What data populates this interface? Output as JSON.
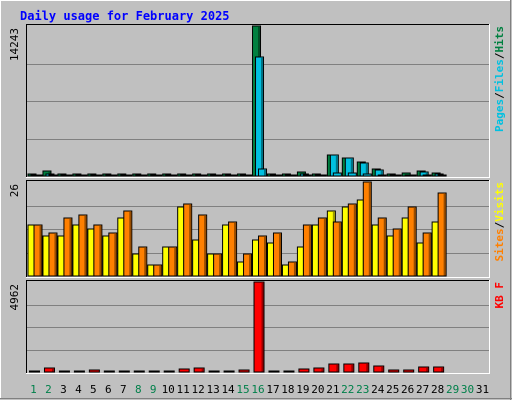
{
  "title": "Daily usage for February 2025",
  "colors": {
    "background": "#c0c0c0",
    "plot_background": "#c0c0c0",
    "title": "#0000ff",
    "hits": "#008040",
    "files": "#00c0e0",
    "pages": "#00c0e0",
    "visits": "#ffff00",
    "sites": "#ff8000",
    "kbytes": "#ff0000",
    "weekday": "#000000",
    "weekend": "#00804a"
  },
  "chart_data": [
    {
      "type": "bar",
      "name": "hits-files-pages",
      "axis_max_label": "14243",
      "ylim": [
        0,
        14243
      ],
      "side_labels": [
        "Pages",
        "/",
        "Files",
        "/",
        "Hits"
      ],
      "categories": [
        "1",
        "2",
        "3",
        "4",
        "5",
        "6",
        "7",
        "8",
        "9",
        "10",
        "11",
        "12",
        "13",
        "14",
        "15",
        "16",
        "17",
        "18",
        "19",
        "20",
        "21",
        "22",
        "23",
        "24",
        "25",
        "26",
        "27",
        "28",
        "29",
        "30",
        "31"
      ],
      "series": [
        {
          "name": "Hits",
          "values": [
            150,
            450,
            180,
            170,
            170,
            160,
            160,
            150,
            160,
            170,
            180,
            170,
            170,
            150,
            170,
            14243,
            160,
            160,
            350,
            220,
            2000,
            1700,
            1300,
            620,
            150,
            250,
            520,
            300,
            0,
            0,
            0
          ]
        },
        {
          "name": "Files",
          "values": [
            80,
            220,
            100,
            100,
            100,
            90,
            90,
            80,
            90,
            100,
            100,
            100,
            100,
            80,
            100,
            11300,
            90,
            90,
            220,
            120,
            1950,
            1700,
            1200,
            560,
            80,
            140,
            380,
            200,
            0,
            0,
            0
          ]
        },
        {
          "name": "Pages",
          "values": [
            50,
            100,
            60,
            60,
            60,
            50,
            50,
            50,
            50,
            60,
            60,
            60,
            60,
            50,
            60,
            700,
            50,
            50,
            100,
            70,
            300,
            260,
            200,
            120,
            50,
            80,
            120,
            90,
            0,
            0,
            0
          ]
        }
      ]
    },
    {
      "type": "bar",
      "name": "visits-sites",
      "axis_max_label": "26",
      "ylim": [
        0,
        26
      ],
      "side_labels": [
        "Sites",
        "/",
        "Visits"
      ],
      "categories": [
        "1",
        "2",
        "3",
        "4",
        "5",
        "6",
        "7",
        "8",
        "9",
        "10",
        "11",
        "12",
        "13",
        "14",
        "15",
        "16",
        "17",
        "18",
        "19",
        "20",
        "21",
        "22",
        "23",
        "24",
        "25",
        "26",
        "27",
        "28",
        "29",
        "30",
        "31"
      ],
      "series": [
        {
          "name": "Visits",
          "values": [
            14,
            11,
            11,
            14,
            13,
            11,
            16,
            6,
            3,
            8,
            19,
            10,
            6,
            14,
            4,
            10,
            9,
            3,
            8,
            14,
            18,
            19,
            21,
            14,
            11,
            16,
            9,
            15,
            0,
            0,
            0
          ]
        },
        {
          "name": "Sites",
          "values": [
            14,
            12,
            16,
            17,
            14,
            12,
            18,
            8,
            3,
            8,
            20,
            17,
            6,
            15,
            6,
            11,
            12,
            4,
            14,
            16,
            15,
            20,
            26,
            16,
            13,
            19,
            12,
            23,
            0,
            0,
            0
          ]
        }
      ]
    },
    {
      "type": "bar",
      "name": "kbytes",
      "axis_max_label": "4962",
      "ylim": [
        0,
        4962
      ],
      "side_labels": [
        "KB F"
      ],
      "categories": [
        "1",
        "2",
        "3",
        "4",
        "5",
        "6",
        "7",
        "8",
        "9",
        "10",
        "11",
        "12",
        "13",
        "14",
        "15",
        "16",
        "17",
        "18",
        "19",
        "20",
        "21",
        "22",
        "23",
        "24",
        "25",
        "26",
        "27",
        "28",
        "29",
        "30",
        "31"
      ],
      "series": [
        {
          "name": "KB F",
          "values": [
            40,
            220,
            50,
            50,
            90,
            60,
            70,
            60,
            60,
            60,
            160,
            200,
            70,
            60,
            110,
            4962,
            40,
            40,
            180,
            220,
            460,
            460,
            470,
            320,
            90,
            130,
            280,
            280,
            0,
            0,
            0
          ]
        }
      ]
    }
  ],
  "days": [
    "1",
    "2",
    "3",
    "4",
    "5",
    "6",
    "7",
    "8",
    "9",
    "10",
    "11",
    "12",
    "13",
    "14",
    "15",
    "16",
    "17",
    "18",
    "19",
    "20",
    "21",
    "22",
    "23",
    "24",
    "25",
    "26",
    "27",
    "28",
    "29",
    "30",
    "31"
  ],
  "weekend_days": [
    "1",
    "2",
    "8",
    "9",
    "15",
    "16",
    "22",
    "23",
    "29",
    "30"
  ]
}
